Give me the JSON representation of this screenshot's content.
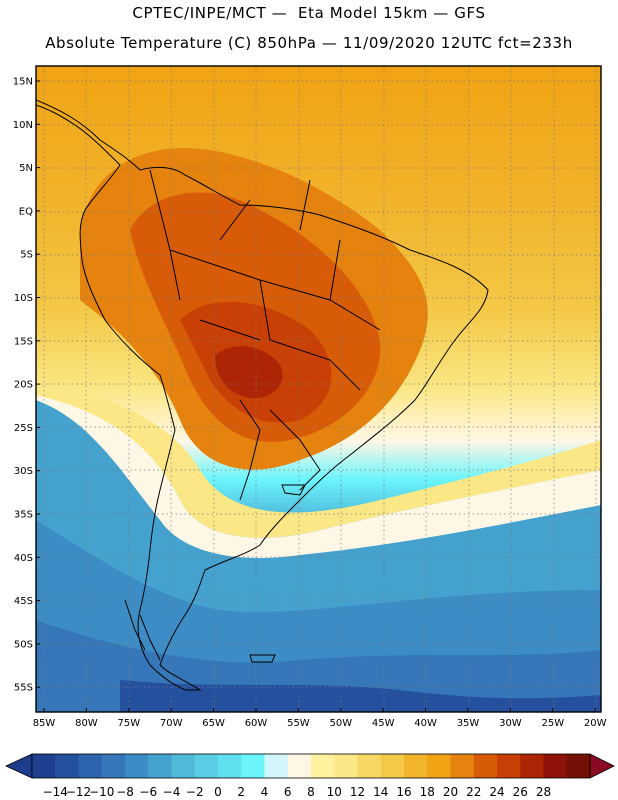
{
  "header": {
    "line1": "CPTEC/INPE/MCT —  Eta Model 15km — GFS",
    "line2": "Absolute Temperature (C) 850hPa — 11/09/2020 12UTC fct=233h"
  },
  "axes": {
    "lat_labels": [
      "15N",
      "10N",
      "5N",
      "EQ",
      "5S",
      "10S",
      "15S",
      "20S",
      "25S",
      "30S",
      "35S",
      "40S",
      "45S",
      "50S",
      "55S"
    ],
    "lon_labels": [
      "85W",
      "80W",
      "75W",
      "70W",
      "65W",
      "60W",
      "55W",
      "50W",
      "45W",
      "40W",
      "35W",
      "30W",
      "25W",
      "20W"
    ]
  },
  "colorbar": {
    "tick_labels": [
      "-14",
      "-12",
      "-10",
      "-8",
      "-6",
      "-4",
      "-2",
      "0",
      "2",
      "4",
      "6",
      "8",
      "10",
      "12",
      "14",
      "16",
      "18",
      "20",
      "22",
      "24",
      "26",
      "28"
    ],
    "under_color": "#1e3c8c",
    "over_color": "#8b0a23",
    "colors": [
      "#1f3f8f",
      "#25509e",
      "#2e64ad",
      "#3577b8",
      "#3c8dc6",
      "#45a2cf",
      "#4fbad8",
      "#58cde3",
      "#5fe0ec",
      "#6bf5fb",
      "#d3f6fb",
      "#fff7e6",
      "#fff29e",
      "#fbe785",
      "#f8d864",
      "#f4c947",
      "#f2b42c",
      "#f0a314",
      "#e6830e",
      "#d85c07",
      "#c84005",
      "#ae2505",
      "#8f1208",
      "#741006"
    ]
  }
}
